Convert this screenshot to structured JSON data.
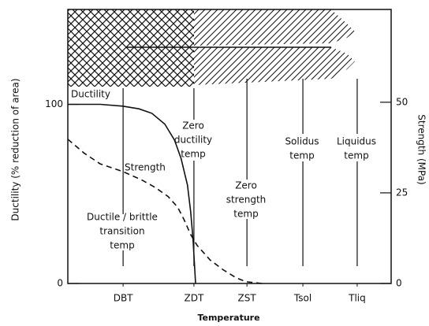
{
  "chart_data": {
    "type": "line",
    "xlabel": "Temperature",
    "ylabel": "Ductility (% reduction of area)",
    "y2label": "Strength (MPa)",
    "xlim": [
      0,
      100
    ],
    "ylim": [
      0,
      153
    ],
    "y2lim": [
      0,
      75.6
    ],
    "xticks": [
      {
        "value": 17.1,
        "label": "DBT"
      },
      {
        "value": 39.0,
        "label": "ZDT"
      },
      {
        "value": 55.4,
        "label": "ZST"
      },
      {
        "value": 72.7,
        "label": "Tsol"
      },
      {
        "value": 89.5,
        "label": "Tliq"
      }
    ],
    "yticks": [
      0,
      100
    ],
    "y2ticks": [
      0,
      25,
      50
    ],
    "series": [
      {
        "name": "Ductility",
        "color": "#111111",
        "dash": false,
        "x": [
          0,
          10,
          17,
          22,
          26,
          30,
          33,
          35,
          37,
          38,
          38.7,
          39.2,
          39.5
        ],
        "values": [
          100,
          100,
          99,
          97.5,
          95,
          89,
          80,
          70,
          55,
          40,
          25,
          10,
          0
        ]
      },
      {
        "name": "Strength",
        "color": "#111111",
        "dash": true,
        "axis": "y2",
        "x": [
          0,
          5,
          10,
          17,
          23,
          27,
          31,
          34,
          36,
          38,
          40,
          44,
          48,
          52,
          55,
          60
        ],
        "values": [
          39.8,
          36,
          33,
          30.9,
          28.5,
          26.5,
          24,
          21,
          17.5,
          13.5,
          10.5,
          6.5,
          3.8,
          1.6,
          0.5,
          0
        ]
      }
    ],
    "annotations": [
      {
        "lines": [
          "Zero",
          "ductility",
          "temp"
        ]
      },
      {
        "lines": [
          "Zero",
          "strength",
          "temp"
        ]
      },
      {
        "lines": [
          "Solidus",
          "temp"
        ]
      },
      {
        "lines": [
          "Liquidus",
          "temp"
        ]
      },
      {
        "lines": [
          "Ductile / brittle",
          "transition",
          "temp"
        ]
      }
    ]
  }
}
